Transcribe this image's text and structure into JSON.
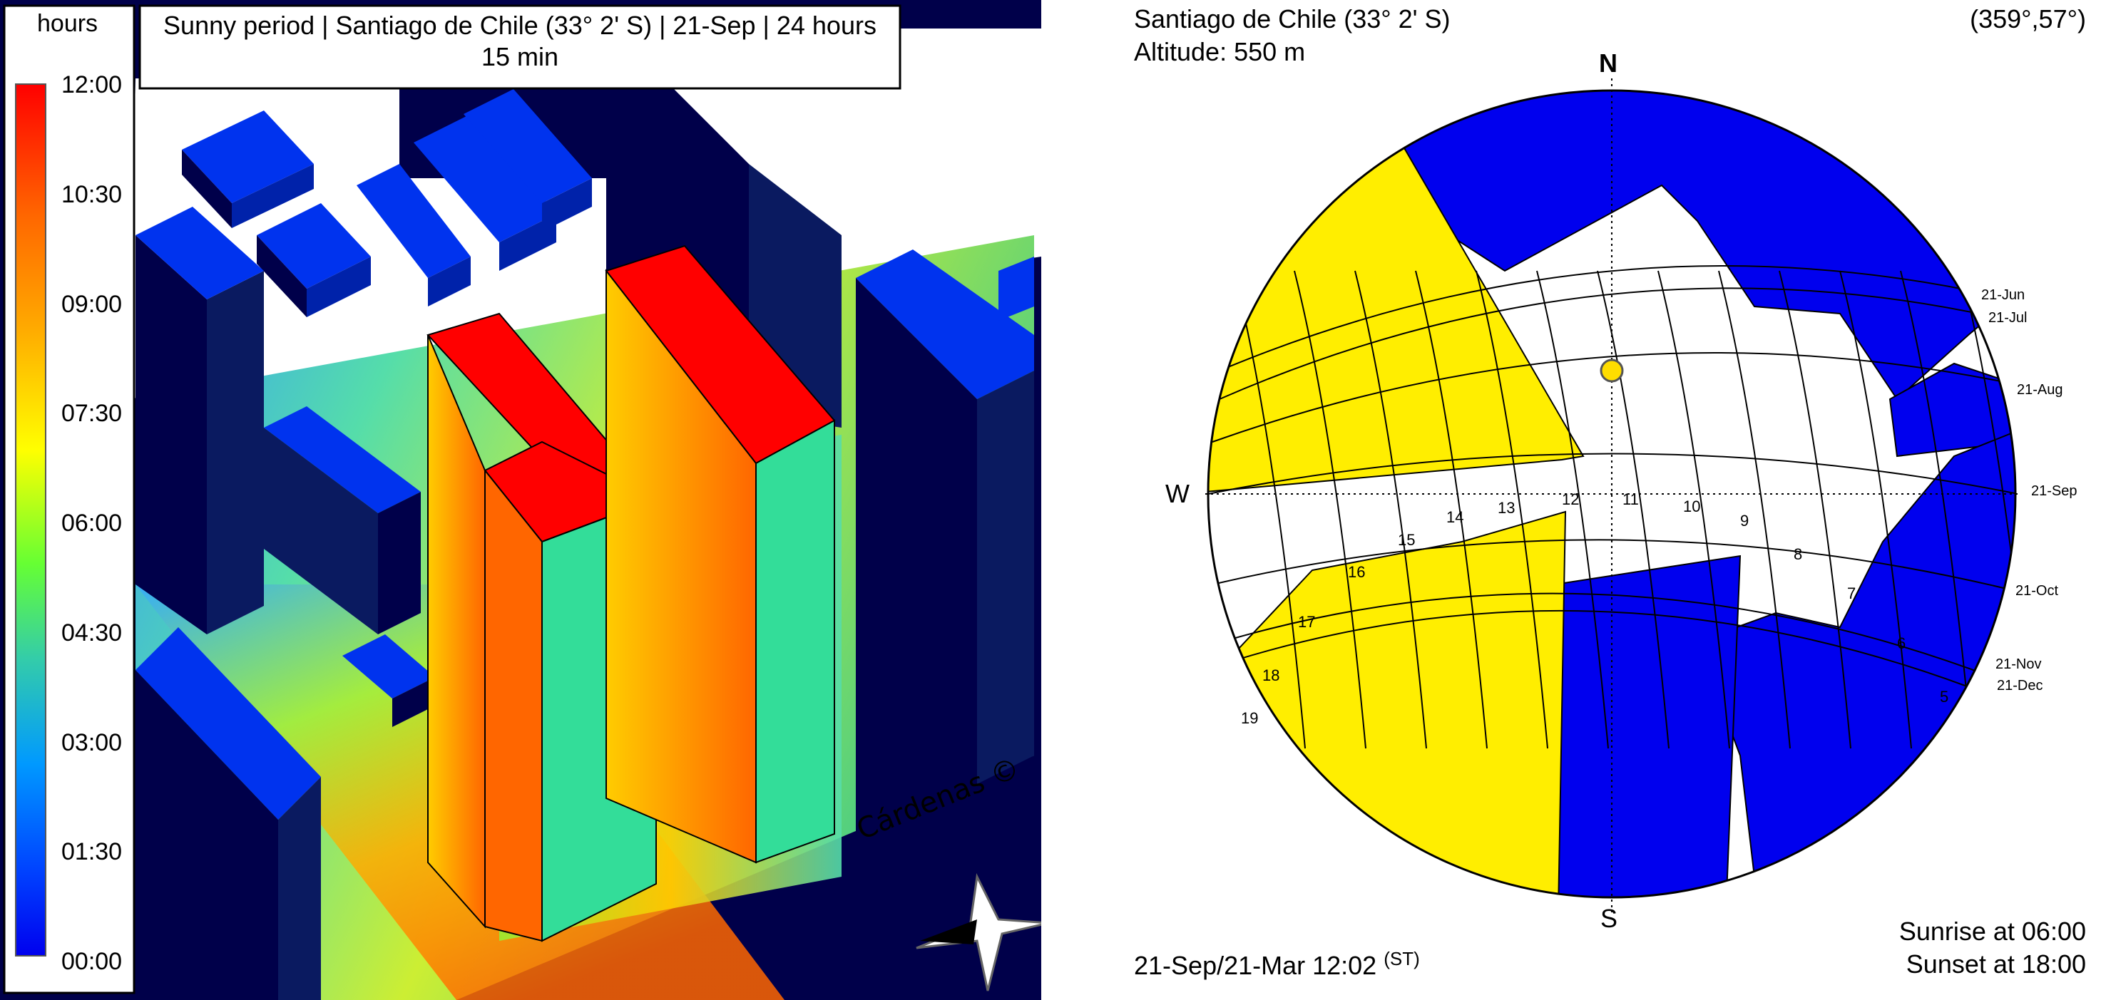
{
  "legend": {
    "unit": "hours",
    "ticks": [
      "12:00",
      "10:30",
      "09:00",
      "07:30",
      "06:00",
      "04:30",
      "03:00",
      "01:30",
      "00:00"
    ],
    "colors": [
      "#ff0000",
      "#ff6600",
      "#ffaa00",
      "#ffff00",
      "#66ff33",
      "#33ccaa",
      "#0099ff",
      "#0044ff",
      "#0000ee"
    ]
  },
  "sim": {
    "title_line1": "Sunny period | Santiago de Chile (33° 2' S) | 21-Sep | 24 hours",
    "title_line2": "15 min",
    "watermark": "Cárdenas ©"
  },
  "sunpath": {
    "location": "Santiago de Chile (33° 2' S)",
    "altitude": "Altitude: 550 m",
    "view": "(359°,57°)",
    "north": "N",
    "south": "S",
    "west": "W",
    "date_time": "21-Sep/21-Mar 12:02",
    "time_sup": "(ST)",
    "sunrise": "Sunrise at 06:00",
    "sunset": "Sunset at 18:00",
    "hours": [
      "19",
      "18",
      "17",
      "16",
      "15",
      "14",
      "13",
      "12",
      "11",
      "10",
      "9",
      "8",
      "7",
      "6",
      "5"
    ],
    "dates": [
      "21-Jun",
      "21-Jul",
      "21-Aug",
      "21-Sep",
      "21-Oct",
      "21-Nov",
      "21-Dec"
    ],
    "colors": {
      "obstruction": "#0000ee",
      "sunny": "#ffee00",
      "sun": "#ffdd00",
      "open": "#ffffff"
    }
  }
}
